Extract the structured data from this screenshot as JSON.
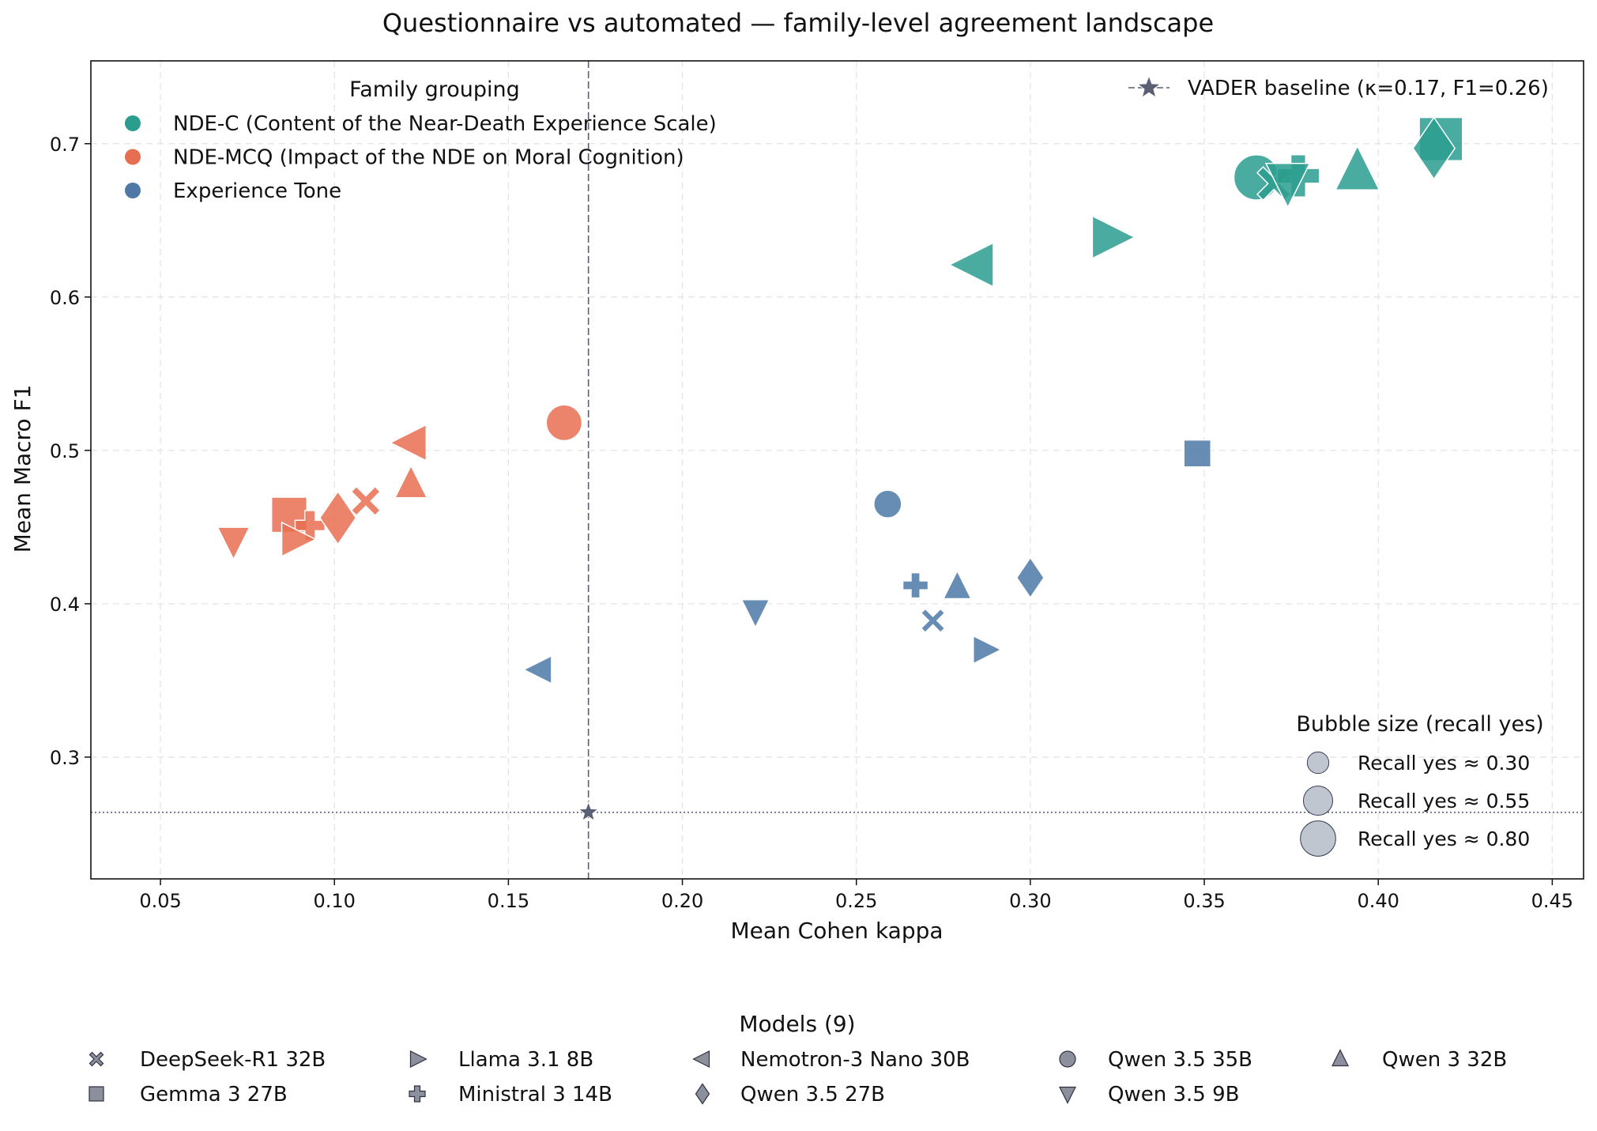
{
  "chart_data": {
    "type": "scatter",
    "title": "Questionnaire vs automated — family-level agreement landscape",
    "xlabel": "Mean Cohen kappa",
    "ylabel": "Mean Macro F1",
    "xlim": [
      0.03,
      0.459
    ],
    "ylim": [
      0.2206,
      0.754
    ],
    "xticks": [
      "0.05",
      "0.10",
      "0.15",
      "0.20",
      "0.25",
      "0.30",
      "0.35",
      "0.40",
      "0.45"
    ],
    "xtick_values": [
      0.05,
      0.1,
      0.15,
      0.2,
      0.25,
      0.3,
      0.35,
      0.4,
      0.45
    ],
    "yticks": [
      "0.3",
      "0.4",
      "0.5",
      "0.6",
      "0.7"
    ],
    "ytick_values": [
      0.3,
      0.4,
      0.5,
      0.6,
      0.7
    ],
    "grid": true,
    "family_legend": {
      "title": "Family grouping",
      "placement": "top-left",
      "items": [
        {
          "key": "ndec",
          "label": "NDE-C (Content of the Near-Death Experience Scale)",
          "color": "#2a9d8f"
        },
        {
          "key": "ndemcq",
          "label": "NDE-MCQ (Impact of the NDE on Moral Cognition)",
          "color": "#e76f51"
        },
        {
          "key": "tone",
          "label": "Experience Tone",
          "color": "#4e79a7"
        }
      ]
    },
    "baseline": {
      "label": "VADER baseline (κ=0.17, F1=0.26)",
      "kappa": 0.173,
      "f1": 0.264,
      "placement": "top-right",
      "color": "#5a5f73"
    },
    "size_legend": {
      "title": "Bubble size (recall yes)",
      "placement": "bottom-right",
      "items": [
        {
          "recall": 0.3,
          "label": "Recall yes ≈ 0.30"
        },
        {
          "recall": 0.55,
          "label": "Recall yes ≈ 0.55"
        },
        {
          "recall": 0.8,
          "label": "Recall yes ≈ 0.80"
        }
      ]
    },
    "models_legend": {
      "title": "Models (9)",
      "placement": "below",
      "items": [
        {
          "label": "DeepSeek-R1 32B",
          "marker": "x"
        },
        {
          "label": "Gemma 3 27B",
          "marker": "square"
        },
        {
          "label": "Llama 3.1 8B",
          "marker": "triangle-right"
        },
        {
          "label": "Ministral 3 14B",
          "marker": "plus"
        },
        {
          "label": "Nemotron-3 Nano 30B",
          "marker": "triangle-left"
        },
        {
          "label": "Qwen 3.5 27B",
          "marker": "diamond"
        },
        {
          "label": "Qwen 3.5 35B",
          "marker": "circle"
        },
        {
          "label": "Qwen 3.5 9B",
          "marker": "triangle-down"
        },
        {
          "label": "Qwen 3 32B",
          "marker": "triangle-up"
        }
      ]
    },
    "series": [
      {
        "family": "ndec",
        "points": [
          {
            "model": "Gemma 3 27B",
            "marker": "square",
            "kappa": 0.418,
            "f1": 0.703,
            "recall": 0.9
          },
          {
            "model": "Qwen 3.5 27B",
            "marker": "diamond",
            "kappa": 0.416,
            "f1": 0.697,
            "recall": 0.95
          },
          {
            "model": "Qwen 3 32B",
            "marker": "triangle-up",
            "kappa": 0.394,
            "f1": 0.682,
            "recall": 0.75
          },
          {
            "model": "Qwen 3.5 35B",
            "marker": "circle",
            "kappa": 0.365,
            "f1": 0.678,
            "recall": 0.8
          },
          {
            "model": "DeepSeek-R1 32B",
            "marker": "x",
            "kappa": 0.37,
            "f1": 0.674,
            "recall": 0.6
          },
          {
            "model": "Ministral 3 14B",
            "marker": "plus",
            "kappa": 0.377,
            "f1": 0.679,
            "recall": 0.7
          },
          {
            "model": "Qwen 3.5 9B",
            "marker": "triangle-down",
            "kappa": 0.374,
            "f1": 0.675,
            "recall": 0.75
          },
          {
            "model": "Llama 3.1 8B",
            "marker": "triangle-right",
            "kappa": 0.323,
            "f1": 0.639,
            "recall": 0.7
          },
          {
            "model": "Nemotron-3 Nano 30B",
            "marker": "triangle-left",
            "kappa": 0.284,
            "f1": 0.621,
            "recall": 0.75
          }
        ]
      },
      {
        "family": "ndemcq",
        "points": [
          {
            "model": "Qwen 3.5 35B",
            "marker": "circle",
            "kappa": 0.166,
            "f1": 0.518,
            "recall": 0.5
          },
          {
            "model": "Nemotron-3 Nano 30B",
            "marker": "triangle-left",
            "kappa": 0.122,
            "f1": 0.505,
            "recall": 0.5
          },
          {
            "model": "Qwen 3 32B",
            "marker": "triangle-up",
            "kappa": 0.122,
            "f1": 0.478,
            "recall": 0.4
          },
          {
            "model": "DeepSeek-R1 32B",
            "marker": "x",
            "kappa": 0.109,
            "f1": 0.467,
            "recall": 0.45
          },
          {
            "model": "Gemma 3 27B",
            "marker": "square",
            "kappa": 0.087,
            "f1": 0.458,
            "recall": 0.6
          },
          {
            "model": "Ministral 3 14B",
            "marker": "plus",
            "kappa": 0.093,
            "f1": 0.451,
            "recall": 0.35
          },
          {
            "model": "Qwen 3.5 27B",
            "marker": "diamond",
            "kappa": 0.101,
            "f1": 0.456,
            "recall": 0.7
          },
          {
            "model": "Llama 3.1 8B",
            "marker": "triangle-right",
            "kappa": 0.089,
            "f1": 0.442,
            "recall": 0.45
          },
          {
            "model": "Qwen 3.5 9B",
            "marker": "triangle-down",
            "kappa": 0.071,
            "f1": 0.441,
            "recall": 0.4
          }
        ]
      },
      {
        "family": "tone",
        "points": [
          {
            "model": "Gemma 3 27B",
            "marker": "square",
            "kappa": 0.348,
            "f1": 0.498,
            "recall": 0.35
          },
          {
            "model": "Qwen 3.5 35B",
            "marker": "circle",
            "kappa": 0.259,
            "f1": 0.465,
            "recall": 0.3
          },
          {
            "model": "Qwen 3.5 27B",
            "marker": "diamond",
            "kappa": 0.3,
            "f1": 0.417,
            "recall": 0.4
          },
          {
            "model": "Qwen 3 32B",
            "marker": "triangle-up",
            "kappa": 0.279,
            "f1": 0.411,
            "recall": 0.3
          },
          {
            "model": "Ministral 3 14B",
            "marker": "plus",
            "kappa": 0.267,
            "f1": 0.412,
            "recall": 0.25
          },
          {
            "model": "DeepSeek-R1 32B",
            "marker": "x",
            "kappa": 0.272,
            "f1": 0.389,
            "recall": 0.3
          },
          {
            "model": "Llama 3.1 8B",
            "marker": "triangle-right",
            "kappa": 0.287,
            "f1": 0.37,
            "recall": 0.3
          },
          {
            "model": "Qwen 3.5 9B",
            "marker": "triangle-down",
            "kappa": 0.221,
            "f1": 0.395,
            "recall": 0.3
          },
          {
            "model": "Nemotron-3 Nano 30B",
            "marker": "triangle-left",
            "kappa": 0.159,
            "f1": 0.357,
            "recall": 0.3
          }
        ]
      }
    ]
  }
}
